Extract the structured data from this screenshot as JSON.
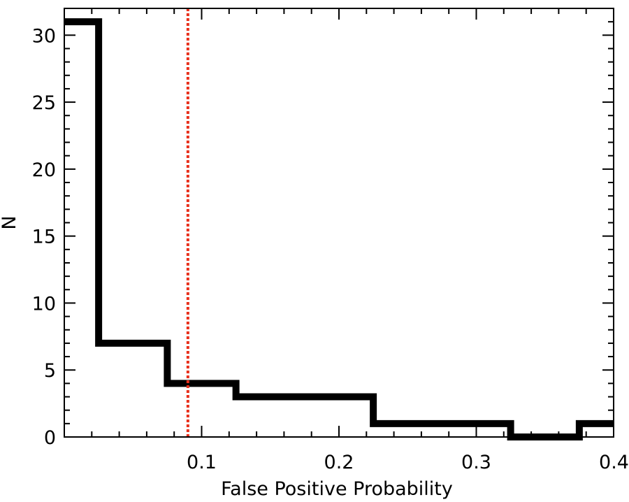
{
  "chart_data": {
    "type": "bar",
    "style": "step-histogram",
    "title": "",
    "xlabel": "False Positive Probability",
    "ylabel": "N",
    "xlim": [
      0.0,
      0.4
    ],
    "ylim": [
      0,
      32
    ],
    "x_ticks": [
      "0.1",
      "0.2",
      "0.3",
      "0.4"
    ],
    "y_ticks": [
      "0",
      "5",
      "10",
      "15",
      "20",
      "25",
      "30"
    ],
    "bin_edges": [
      0.0,
      0.025,
      0.075,
      0.125,
      0.225,
      0.325,
      0.375,
      0.4
    ],
    "values": [
      31,
      7,
      4,
      3,
      1,
      0,
      1
    ],
    "threshold_line": {
      "x": 0.09,
      "style": "dotted",
      "color": "#e8301c"
    },
    "grid": false,
    "legend": null,
    "colors": {
      "histogram": "#000000",
      "threshold": "#e8301c"
    }
  }
}
